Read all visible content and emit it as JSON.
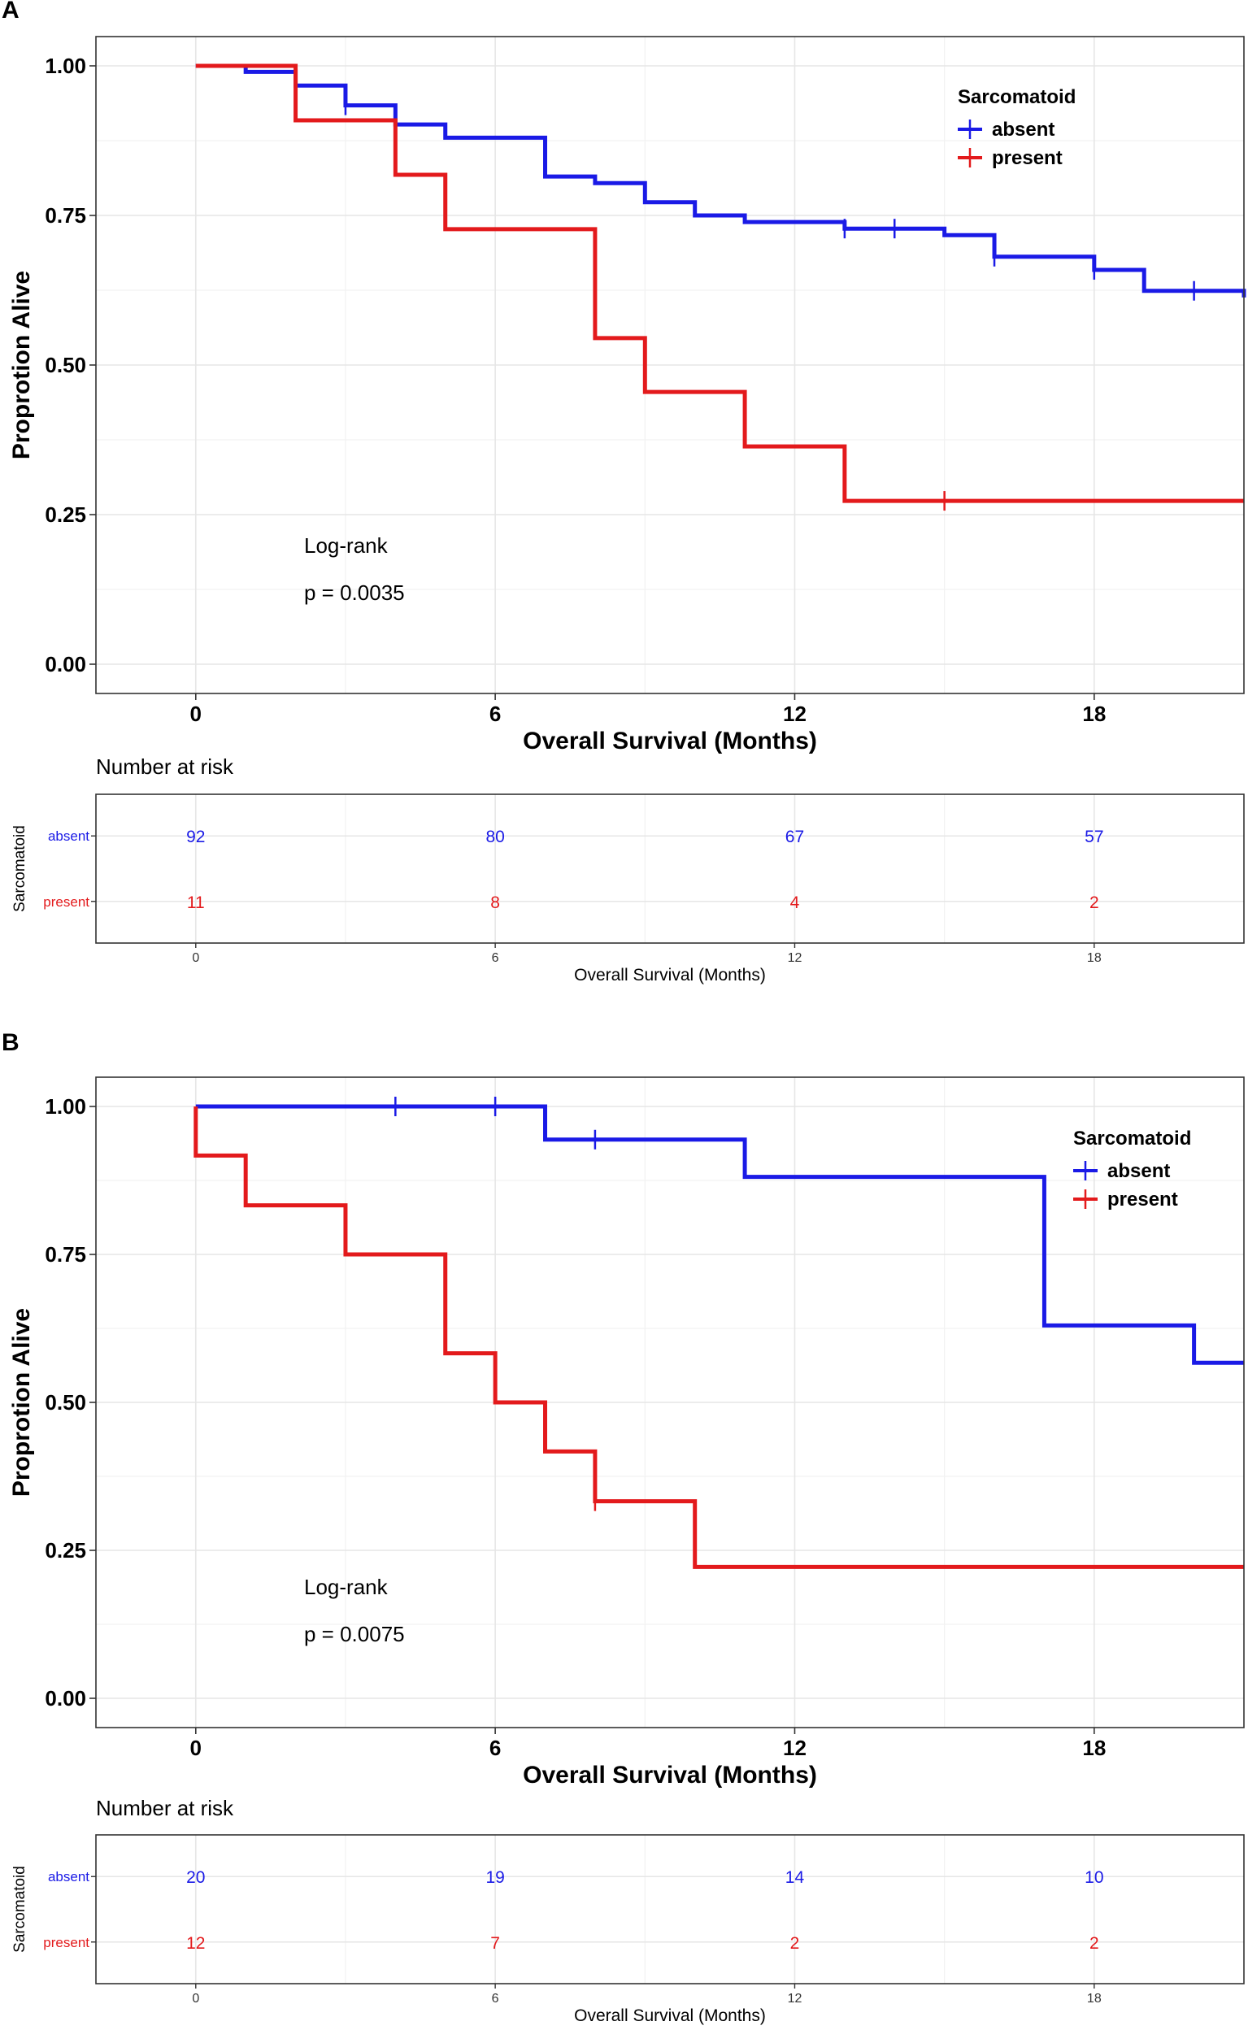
{
  "chart_data": [
    {
      "type": "line",
      "panel": "A",
      "title": "",
      "xlabel": "Overall Survival (Months)",
      "ylabel": "Proprotion Alive",
      "xlim": [
        -2,
        21
      ],
      "ylim": [
        0,
        1
      ],
      "xticks": [
        0,
        6,
        12,
        18
      ],
      "yticks": [
        0,
        0.25,
        0.5,
        0.75,
        1.0
      ],
      "ytick_labels": [
        "0.00",
        "0.25",
        "0.50",
        "0.75",
        "1.00"
      ],
      "grid": true,
      "legend": {
        "title": "Sarcomatoid",
        "position": "top-right",
        "entries": [
          "absent",
          "present"
        ]
      },
      "annotation": {
        "line1": "Log-rank",
        "line2": "p = 0.0035"
      },
      "series": [
        {
          "name": "absent",
          "color": "#1a1ae6",
          "x": [
            0,
            1,
            2,
            3,
            4,
            5,
            7,
            8,
            9,
            10,
            11,
            13,
            15,
            16,
            18,
            19,
            21
          ],
          "y": [
            1.0,
            0.99,
            0.967,
            0.934,
            0.902,
            0.88,
            0.815,
            0.804,
            0.772,
            0.75,
            0.739,
            0.728,
            0.717,
            0.681,
            0.659,
            0.624,
            0.613
          ],
          "censor_x": [
            3,
            13,
            14,
            16,
            18,
            20
          ]
        },
        {
          "name": "present",
          "color": "#e31a1c",
          "x": [
            0,
            2,
            4,
            5,
            8,
            9,
            11,
            13,
            21
          ],
          "y": [
            1.0,
            0.909,
            0.818,
            0.727,
            0.545,
            0.455,
            0.364,
            0.273,
            0.273
          ],
          "censor_x": [
            15
          ]
        }
      ],
      "risk_table": {
        "title": "Number at risk",
        "ylabel": "Sarcomatoid",
        "xlabel": "Overall Survival (Months)",
        "times": [
          0,
          6,
          12,
          18
        ],
        "time_labels": [
          "0",
          "6",
          "12",
          "18"
        ],
        "rows": [
          {
            "group": "absent",
            "counts": [
              "92",
              "80",
              "67",
              "57"
            ]
          },
          {
            "group": "present",
            "counts": [
              "11",
              "8",
              "4",
              "2"
            ]
          }
        ]
      }
    },
    {
      "type": "line",
      "panel": "B",
      "title": "",
      "xlabel": "Overall Survival (Months)",
      "ylabel": "Proprotion Alive",
      "xlim": [
        -2,
        21
      ],
      "ylim": [
        0,
        1
      ],
      "xticks": [
        0,
        6,
        12,
        18
      ],
      "yticks": [
        0,
        0.25,
        0.5,
        0.75,
        1.0
      ],
      "ytick_labels": [
        "0.00",
        "0.25",
        "0.50",
        "0.75",
        "1.00"
      ],
      "grid": true,
      "legend": {
        "title": "Sarcomatoid",
        "position": "top-right",
        "entries": [
          "absent",
          "present"
        ]
      },
      "annotation": {
        "line1": "Log-rank",
        "line2": "p = 0.0075"
      },
      "series": [
        {
          "name": "absent",
          "color": "#1a1ae6",
          "x": [
            0,
            7,
            11,
            17,
            20,
            21
          ],
          "y": [
            1.0,
            0.944,
            0.881,
            0.63,
            0.567,
            0.567
          ],
          "censor_x": [
            4,
            6,
            8
          ]
        },
        {
          "name": "present",
          "color": "#e31a1c",
          "x": [
            0,
            1,
            3,
            5,
            6,
            7,
            8,
            10,
            21
          ],
          "y": [
            0.917,
            0.833,
            0.75,
            0.583,
            0.5,
            0.417,
            0.333,
            0.222,
            0.222
          ],
          "start_y": 1.0,
          "censor_x": [
            8
          ]
        }
      ],
      "risk_table": {
        "title": "Number at risk",
        "ylabel": "Sarcomatoid",
        "xlabel": "Overall Survival (Months)",
        "times": [
          0,
          6,
          12,
          18
        ],
        "time_labels": [
          "0",
          "6",
          "12",
          "18"
        ],
        "rows": [
          {
            "group": "absent",
            "counts": [
              "20",
              "19",
              "14",
              "10"
            ]
          },
          {
            "group": "present",
            "counts": [
              "12",
              "7",
              "2",
              "2"
            ]
          }
        ]
      }
    }
  ]
}
